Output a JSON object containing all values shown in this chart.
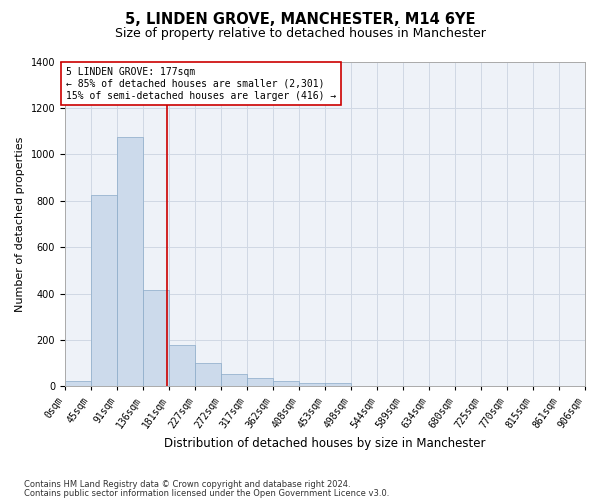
{
  "title": "5, LINDEN GROVE, MANCHESTER, M14 6YE",
  "subtitle": "Size of property relative to detached houses in Manchester",
  "xlabel": "Distribution of detached houses by size in Manchester",
  "ylabel": "Number of detached properties",
  "footnote1": "Contains HM Land Registry data © Crown copyright and database right 2024.",
  "footnote2": "Contains public sector information licensed under the Open Government Licence v3.0.",
  "bin_edges": [
    0,
    45,
    91,
    136,
    181,
    227,
    272,
    317,
    362,
    408,
    453,
    498,
    544,
    589,
    634,
    680,
    725,
    770,
    815,
    861,
    906
  ],
  "bar_heights": [
    25,
    825,
    1075,
    415,
    180,
    100,
    55,
    35,
    25,
    15,
    15,
    0,
    0,
    0,
    0,
    0,
    0,
    0,
    0,
    0
  ],
  "bar_color": "#ccdaeb",
  "bar_edge_color": "#8aaac8",
  "grid_color": "#d0d8e4",
  "ref_line_x": 177,
  "ref_line_color": "#cc0000",
  "annotation_box_color": "#cc0000",
  "annotation_lines": [
    "5 LINDEN GROVE: 177sqm",
    "← 85% of detached houses are smaller (2,301)",
    "15% of semi-detached houses are larger (416) →"
  ],
  "ylim": [
    0,
    1400
  ],
  "yticks": [
    0,
    200,
    400,
    600,
    800,
    1000,
    1200,
    1400
  ],
  "background_color": "#eef2f8",
  "title_fontsize": 10.5,
  "subtitle_fontsize": 9.0,
  "xlabel_fontsize": 8.5,
  "ylabel_fontsize": 8.0,
  "tick_fontsize": 7.0,
  "annot_fontsize": 7.0,
  "footnote_fontsize": 6.0
}
